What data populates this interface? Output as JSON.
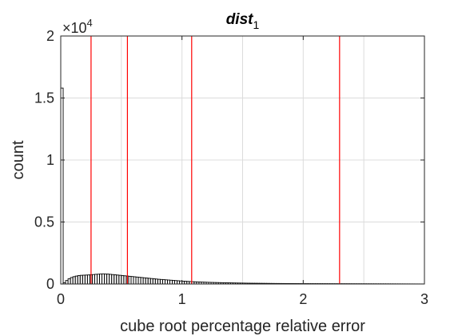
{
  "chart_data": {
    "type": "bar",
    "title": "dist",
    "title_subscript": "1",
    "xlabel": "cube root percentage relative error",
    "ylabel": "count",
    "exponent_label": "×10",
    "exponent_power": "4",
    "xlim": [
      0,
      3
    ],
    "ylim": [
      0,
      20000
    ],
    "xticks": [
      0,
      1,
      2,
      3
    ],
    "xtick_labels": [
      "0",
      "1",
      "2",
      "3"
    ],
    "yticks": [
      0,
      5000,
      10000,
      15000,
      20000
    ],
    "ytick_labels": [
      "0",
      "0.5",
      "1",
      "1.5",
      "2"
    ],
    "grid": true,
    "bin_width": 0.02,
    "histogram": {
      "x": [
        0.01,
        0.03,
        0.05,
        0.07,
        0.09,
        0.11,
        0.13,
        0.15,
        0.17,
        0.19,
        0.21,
        0.23,
        0.25,
        0.27,
        0.29,
        0.31,
        0.33,
        0.35,
        0.37,
        0.39,
        0.41,
        0.43,
        0.45,
        0.47,
        0.49,
        0.51,
        0.53,
        0.55,
        0.57,
        0.59,
        0.61,
        0.63,
        0.65,
        0.67,
        0.69,
        0.71,
        0.73,
        0.75,
        0.77,
        0.79,
        0.81,
        0.83,
        0.85,
        0.87,
        0.89,
        0.91,
        0.93,
        0.95,
        0.97,
        0.99,
        1.01,
        1.03,
        1.05,
        1.07,
        1.09,
        1.11,
        1.13,
        1.15,
        1.17,
        1.19,
        1.21,
        1.23,
        1.25,
        1.27,
        1.29,
        1.31,
        1.33,
        1.35,
        1.37,
        1.39,
        1.41,
        1.43,
        1.45,
        1.47,
        1.49,
        1.51,
        1.53,
        1.55,
        1.57,
        1.59,
        1.61,
        1.63,
        1.65,
        1.67,
        1.69,
        1.71,
        1.73,
        1.75,
        1.77,
        1.79,
        1.81,
        1.83,
        1.85,
        1.87,
        1.89,
        1.91,
        1.93,
        1.95,
        1.97,
        1.99,
        2.01,
        2.03,
        2.05,
        2.07,
        2.09,
        2.11,
        2.13,
        2.15,
        2.17,
        2.19,
        2.21,
        2.23,
        2.25,
        2.27,
        2.29,
        2.31,
        2.33,
        2.35,
        2.37,
        2.39,
        2.41,
        2.43,
        2.45,
        2.47,
        2.49,
        2.51,
        2.53,
        2.55,
        2.57,
        2.59,
        2.61,
        2.63,
        2.65,
        2.67,
        2.69,
        2.71,
        2.73,
        2.75,
        2.77,
        2.79,
        2.81,
        2.83,
        2.85,
        2.87,
        2.89,
        2.91,
        2.93,
        2.95,
        2.97,
        2.99
      ],
      "counts": [
        15800,
        100,
        280,
        420,
        520,
        590,
        640,
        680,
        700,
        710,
        720,
        730,
        750,
        760,
        780,
        790,
        810,
        820,
        810,
        800,
        780,
        760,
        740,
        720,
        700,
        680,
        660,
        640,
        620,
        600,
        580,
        560,
        540,
        520,
        500,
        480,
        460,
        440,
        420,
        400,
        380,
        365,
        350,
        335,
        320,
        305,
        290,
        275,
        260,
        245,
        230,
        218,
        206,
        195,
        185,
        176,
        168,
        160,
        152,
        145,
        138,
        132,
        126,
        120,
        115,
        110,
        105,
        100,
        96,
        92,
        88,
        84,
        80,
        77,
        74,
        71,
        68,
        65,
        62,
        60,
        58,
        56,
        54,
        52,
        50,
        48,
        46,
        44,
        42,
        41,
        40,
        39,
        38,
        37,
        36,
        35,
        34,
        33,
        32,
        31,
        30,
        30,
        29,
        29,
        28,
        28,
        27,
        27,
        26,
        26,
        25,
        25,
        24,
        24,
        23,
        23,
        22,
        22,
        21,
        21,
        20,
        20,
        19,
        19,
        18,
        18,
        17,
        17,
        16,
        16,
        15,
        15,
        14,
        14,
        13,
        13,
        12,
        12,
        11,
        11,
        10,
        10,
        9,
        9,
        8,
        8,
        7,
        7,
        6,
        6
      ]
    },
    "vertical_lines": {
      "color": "#ff0000",
      "x": [
        0.25,
        0.55,
        1.08,
        2.3
      ]
    },
    "colors": {
      "bars": "#000000",
      "grid": "#dcdcdc",
      "axes": "#262626"
    }
  }
}
